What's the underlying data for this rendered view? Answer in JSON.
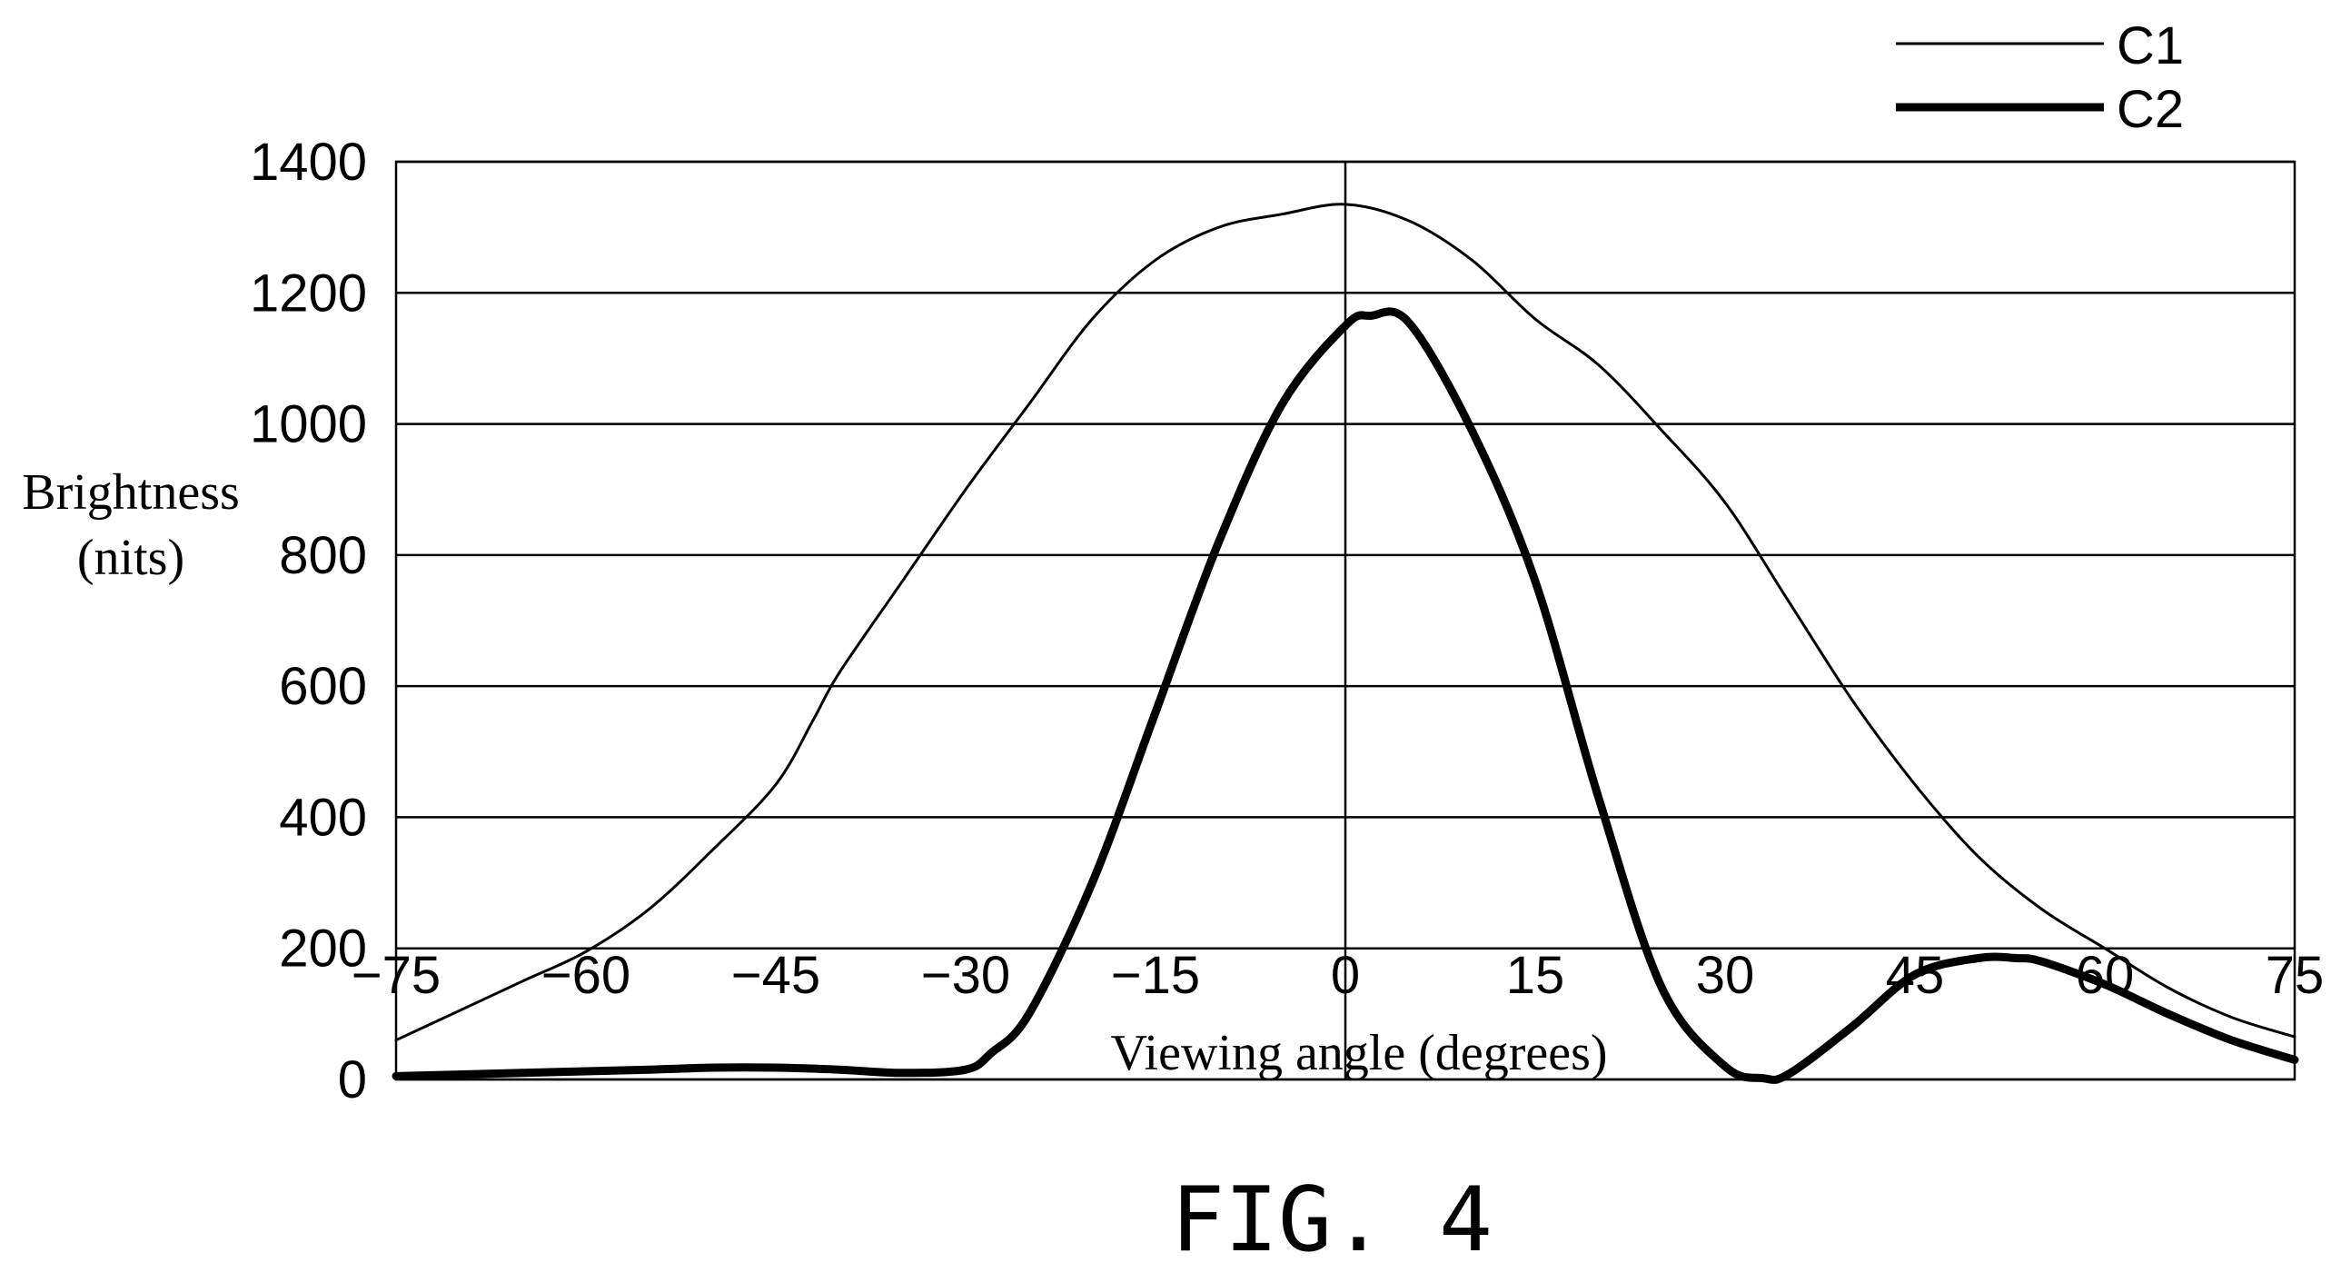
{
  "chart_data": {
    "type": "line",
    "title": "",
    "xlabel": "Viewing angle (degrees)",
    "ylabel_lines": [
      "Brightness",
      "(nits)"
    ],
    "xlim": [
      -75,
      75
    ],
    "ylim": [
      0,
      1400
    ],
    "x_ticks": [
      "−75",
      "−60",
      "−45",
      "−30",
      "−15",
      "0",
      "15",
      "30",
      "45",
      "60",
      "75"
    ],
    "x_tick_values": [
      -75,
      -60,
      -45,
      -30,
      -15,
      0,
      15,
      30,
      45,
      60,
      75
    ],
    "y_ticks": [
      "0",
      "200",
      "400",
      "600",
      "800",
      "1000",
      "1200",
      "1400"
    ],
    "y_tick_values": [
      0,
      200,
      400,
      600,
      800,
      1000,
      1200,
      1400
    ],
    "grid": "horizontal",
    "zero_vertical_line": true,
    "legend_position": "top-right",
    "series": [
      {
        "name": "C1",
        "style": "thin",
        "color": "#000000",
        "x": [
          -75,
          -70,
          -65,
          -60,
          -55,
          -50,
          -45,
          -42,
          -40,
          -35,
          -30,
          -25,
          -20,
          -15,
          -10,
          -5,
          0,
          5,
          10,
          15,
          20,
          25,
          30,
          35,
          40,
          45,
          50,
          55,
          60,
          65,
          70,
          75
        ],
        "y": [
          60,
          105,
          150,
          195,
          260,
          350,
          450,
          550,
          620,
          760,
          900,
          1030,
          1160,
          1250,
          1300,
          1320,
          1335,
          1310,
          1250,
          1160,
          1090,
          990,
          880,
          730,
          580,
          450,
          340,
          260,
          200,
          140,
          95,
          65
        ]
      },
      {
        "name": "C2",
        "style": "thick",
        "color": "#000000",
        "x": [
          -75,
          -65,
          -55,
          -50,
          -45,
          -40,
          -35,
          -30,
          -28,
          -25,
          -20,
          -15,
          -10,
          -5,
          0,
          2,
          5,
          10,
          15,
          20,
          25,
          30,
          33,
          35,
          40,
          45,
          50,
          53,
          55,
          60,
          65,
          70,
          75
        ],
        "y": [
          5,
          10,
          15,
          18,
          18,
          15,
          10,
          15,
          40,
          100,
          300,
          560,
          820,
          1030,
          1150,
          1165,
          1155,
          990,
          760,
          430,
          140,
          20,
          2,
          8,
          80,
          160,
          185,
          185,
          180,
          145,
          100,
          60,
          30
        ]
      }
    ]
  },
  "figure_label": "FIG. 4"
}
